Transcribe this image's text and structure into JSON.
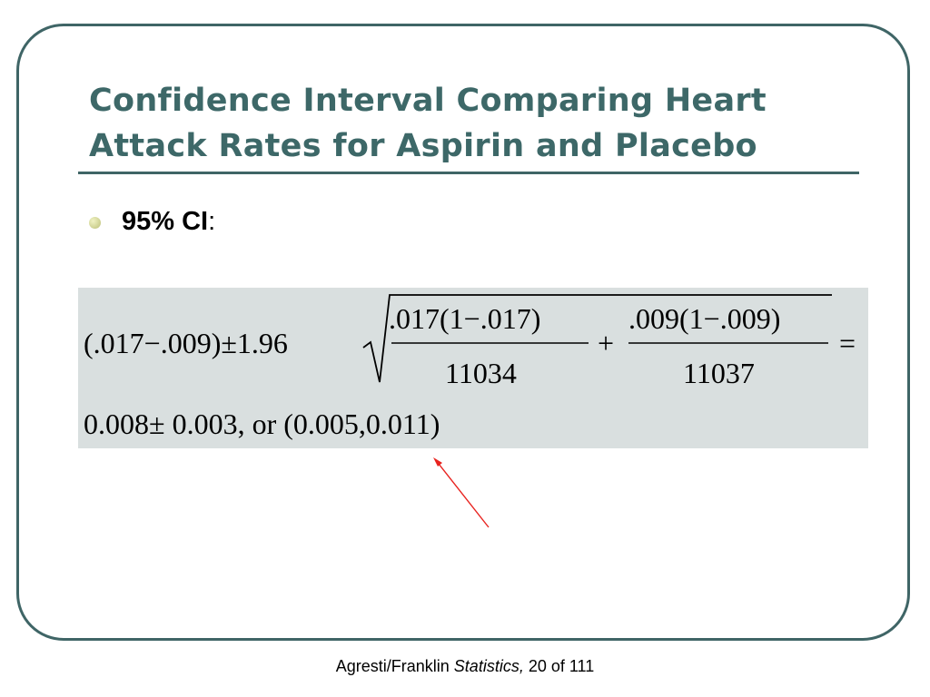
{
  "slide": {
    "title_line1": "Confidence Interval Comparing Heart",
    "title_line2": "Attack Rates for Aspirin and Placebo",
    "bullet_bold": "95% CI",
    "bullet_rest": ":"
  },
  "formula": {
    "lhs": "(.017−.009)±1.96",
    "frac1_num": ".017(1−.017)",
    "frac1_den": "11034",
    "plus": "+",
    "frac2_num": ".009(1−.009)",
    "frac2_den": "11037",
    "equals": "=",
    "result": "0.008± 0.003, or (0.005,0.011)"
  },
  "footer": {
    "author": "Agresti/Franklin ",
    "book": "Statistics,",
    "page": " 20 of 111"
  },
  "colors": {
    "title": "#3d6868",
    "frame": "#3f6566",
    "formula_bg": "#d9dfdf",
    "arrow": "#e8231f"
  },
  "icons": {
    "bullet": "bullet-dot-icon",
    "arrow": "red-arrow-icon"
  }
}
